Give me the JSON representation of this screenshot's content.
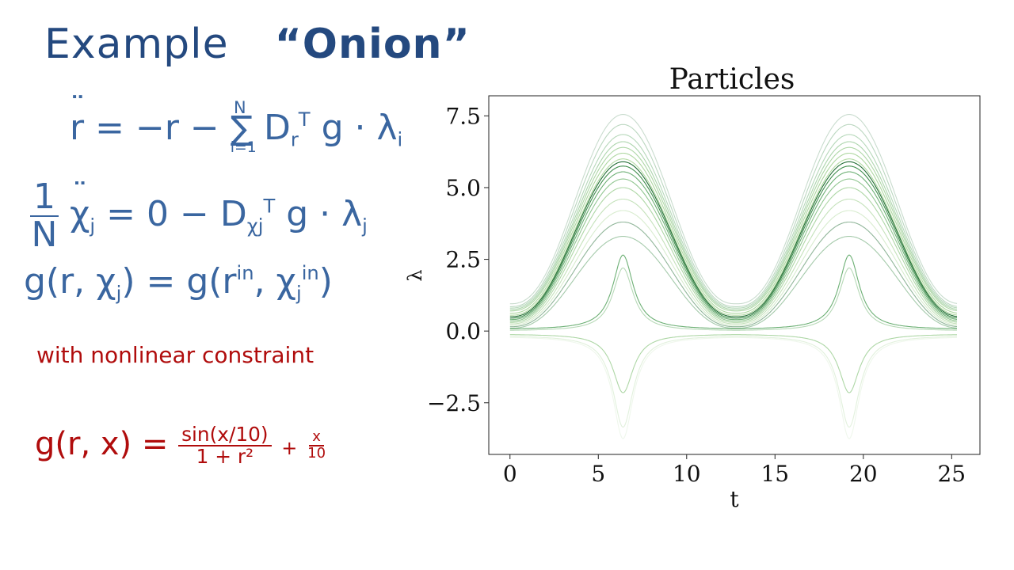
{
  "notes": {
    "title_example": "Example",
    "title_name": "“Onion”",
    "eq1": {
      "lhs": "r",
      "mid": "= −r  −",
      "sum_top": "N",
      "sum_sym": "∑",
      "sum_bottom": "i=1",
      "term": "D",
      "term_sub": "r",
      "term_sup": "T",
      "tail": "g · λ",
      "tail_sub": "i"
    },
    "eq2": {
      "frac_num": "1",
      "frac_den": "N",
      "lhs": "χ",
      "lhs_sub": "j",
      "mid": "=  0   −   D",
      "term_sub": "χj",
      "term_sup": "T",
      "tail": "g · λ",
      "tail_sub": "j"
    },
    "eq3": {
      "lhs_a": "g(r, χ",
      "lhs_sub": "j",
      "mid": ") =  g(r",
      "sup_in1": "in",
      "comma": ", χ",
      "sub_j2": "j",
      "sup_in2": "in",
      "close": ")"
    },
    "constraint": "with nonlinear  constraint",
    "geq": {
      "lhs": "g(r, x) =",
      "num": "sin(x/10)",
      "den": "1 + r²",
      "plus": "+",
      "small_num": "x",
      "small_den": "10"
    }
  },
  "chart_data": {
    "type": "line",
    "title": "Particles",
    "xlabel": "t",
    "ylabel": "λ",
    "xlim": [
      -1.2,
      26.6
    ],
    "ylim": [
      -4.3,
      8.2
    ],
    "xticks": [
      0,
      5,
      10,
      15,
      20,
      25
    ],
    "yticks": [
      -2.5,
      0.0,
      2.5,
      5.0,
      7.5
    ],
    "xtick_labels": [
      "0",
      "5",
      "10",
      "15",
      "20",
      "25"
    ],
    "ytick_labels": [
      "−2.5",
      "0.0",
      "2.5",
      "5.0",
      "7.5"
    ],
    "grid": false,
    "period": 12.8,
    "t_end": 25.3,
    "colors": [
      "#0b5e20",
      "#1f7a2e",
      "#2f8f3a",
      "#4aa14a",
      "#6cb75c",
      "#8cc678",
      "#a8d595"
    ],
    "series": [
      {
        "kind": "bump",
        "base": 0.95,
        "peak": 7.55,
        "alpha": 0.22
      },
      {
        "kind": "bump",
        "base": 0.85,
        "peak": 7.2,
        "alpha": 0.3
      },
      {
        "kind": "bump",
        "base": 0.8,
        "peak": 6.85,
        "alpha": 0.35
      },
      {
        "kind": "bump",
        "base": 0.75,
        "peak": 6.6,
        "alpha": 0.45
      },
      {
        "kind": "bump",
        "base": 0.7,
        "peak": 6.4,
        "alpha": 0.55
      },
      {
        "kind": "bump",
        "base": 0.62,
        "peak": 6.2,
        "alpha": 0.7
      },
      {
        "kind": "bump",
        "base": 0.55,
        "peak": 6.0,
        "alpha": 0.85
      },
      {
        "kind": "bump",
        "base": 0.5,
        "peak": 5.9,
        "alpha": 0.9
      },
      {
        "kind": "bump",
        "base": 0.45,
        "peak": 5.75,
        "alpha": 0.85
      },
      {
        "kind": "bump",
        "base": 0.4,
        "peak": 5.55,
        "alpha": 0.7
      },
      {
        "kind": "bump",
        "base": 0.35,
        "peak": 5.3,
        "alpha": 0.6
      },
      {
        "kind": "bump",
        "base": 0.3,
        "peak": 5.0,
        "alpha": 0.55
      },
      {
        "kind": "bump",
        "base": 0.25,
        "peak": 4.6,
        "alpha": 0.5
      },
      {
        "kind": "bump",
        "base": 0.2,
        "peak": 4.2,
        "alpha": 0.45
      },
      {
        "kind": "bump",
        "base": 0.15,
        "peak": 3.8,
        "alpha": 0.45
      },
      {
        "kind": "bump",
        "base": 0.1,
        "peak": 3.3,
        "alpha": 0.4
      },
      {
        "kind": "spike",
        "base": 0.05,
        "peak": 2.65,
        "alpha": 0.7
      },
      {
        "kind": "spike",
        "base": 0.0,
        "peak": 2.2,
        "alpha": 0.4
      },
      {
        "kind": "spike",
        "base": -0.1,
        "peak": -2.15,
        "alpha": 0.55
      },
      {
        "kind": "spike",
        "base": -0.15,
        "peak": -3.35,
        "alpha": 0.25
      },
      {
        "kind": "spike",
        "base": -0.18,
        "peak": -3.75,
        "alpha": 0.18
      }
    ]
  }
}
